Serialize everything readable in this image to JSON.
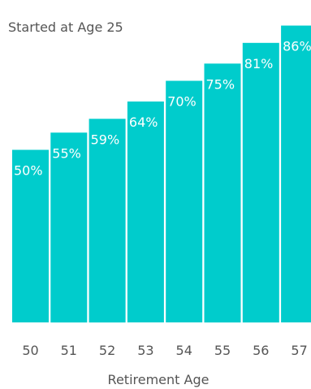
{
  "chart_data": {
    "type": "bar",
    "title": "Started at Age 25",
    "xlabel": "Retirement Age",
    "ylabel": "",
    "categories": [
      "50",
      "51",
      "52",
      "53",
      "54",
      "55",
      "56",
      "57"
    ],
    "values": [
      50,
      55,
      59,
      64,
      70,
      75,
      81,
      86
    ],
    "data_labels": [
      "50%",
      "55%",
      "59%",
      "64%",
      "70%",
      "75%",
      "81%",
      "86%"
    ],
    "ylim": [
      0,
      100
    ],
    "grid": false,
    "legend": "none",
    "colors": {
      "bar": "#00CCCC",
      "text": "#555555",
      "label": "#ffffff"
    }
  }
}
